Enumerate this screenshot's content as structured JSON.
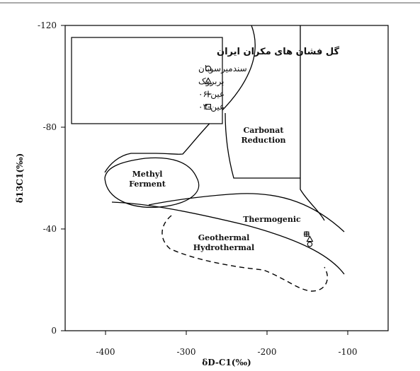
{
  "chart_data": {
    "type": "scatter",
    "xlabel": "δD-C1(‰)",
    "ylabel": "δ13C1(‰)",
    "xlim": [
      -450,
      -50
    ],
    "ylim": [
      0,
      -120
    ],
    "x_ticks": [
      "-400",
      "-300",
      "-200",
      "-100"
    ],
    "y_ticks": [
      "0",
      "-40",
      "-80",
      "-120"
    ],
    "grid": false,
    "legend_position": "top-left",
    "legend_title": "گل فشان های مکران ایران",
    "regions": [
      {
        "name": "Methyl Ferment",
        "lines": [
          "Methyl",
          "Ferment"
        ]
      },
      {
        "name": "Carbonat Reduction",
        "lines": [
          "Carbonat",
          "Reduction"
        ]
      },
      {
        "name": "Thermogenic",
        "lines": [
          "Thermogenic"
        ]
      },
      {
        "name": "Geothermal Hydrothermal",
        "lines": [
          "Geothermal",
          "Hydrothermal"
        ]
      }
    ],
    "series": [
      {
        "name": "سندمیرسوبان",
        "marker": "circle",
        "x": [
          -147
        ],
        "y": [
          -34
        ]
      },
      {
        "name": "بربروک",
        "marker": "triangle",
        "x": [
          -147
        ],
        "y": [
          -36
        ]
      },
      {
        "name": "عین-۰۶",
        "marker": "plus",
        "x": [
          -151
        ],
        "y": [
          -38
        ]
      },
      {
        "name": "عین-۰۳",
        "marker": "square",
        "x": [
          -151
        ],
        "y": [
          -38
        ]
      }
    ]
  }
}
